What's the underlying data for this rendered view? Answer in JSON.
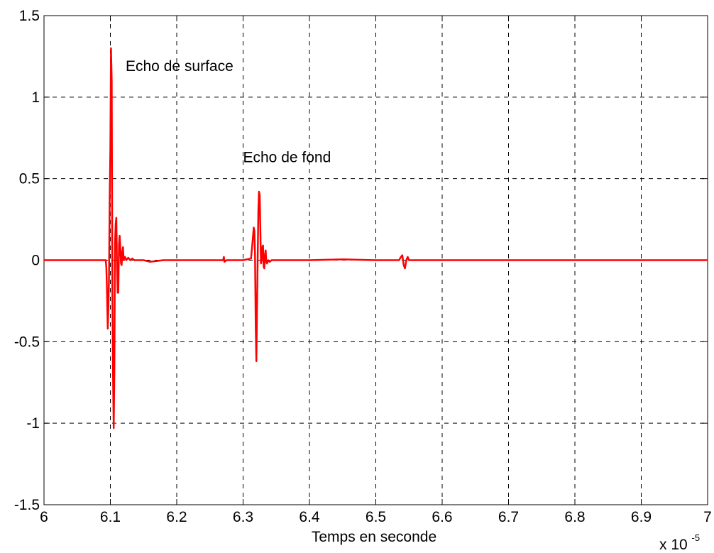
{
  "chart_data": {
    "type": "line",
    "title": "",
    "xlabel": "Temps en seconde",
    "ylabel": "",
    "x_multiplier_label": "x 10",
    "x_multiplier_exponent": "-5",
    "xlim": [
      6,
      7
    ],
    "ylim": [
      -1.5,
      1.5
    ],
    "x_ticks": [
      6,
      6.1,
      6.2,
      6.3,
      6.4,
      6.5,
      6.6,
      6.7,
      6.8,
      6.9,
      7
    ],
    "x_tick_labels": [
      "6",
      "6.1",
      "6.2",
      "6.3",
      "6.4",
      "6.5",
      "6.6",
      "6.7",
      "6.8",
      "6.9",
      "7"
    ],
    "y_ticks": [
      -1.5,
      -1,
      -0.5,
      0,
      0.5,
      1,
      1.5
    ],
    "y_tick_labels": [
      "-1.5",
      "-1",
      "-0.5",
      "0",
      "0.5",
      "1",
      "1.5"
    ],
    "grid": true,
    "series_color": "#ff0000",
    "annotations": [
      {
        "text": "Echo de surface",
        "x": 6.123,
        "y": 1.16
      },
      {
        "text": "Echo de fond",
        "x": 6.3,
        "y": 0.6
      }
    ],
    "series": [
      {
        "x": [
          6.0,
          6.093,
          6.094,
          6.095,
          6.096,
          6.097,
          6.098,
          6.099,
          6.1,
          6.101,
          6.102,
          6.103,
          6.104,
          6.105,
          6.106,
          6.107,
          6.108,
          6.109,
          6.11,
          6.111,
          6.112,
          6.113,
          6.114,
          6.115,
          6.116,
          6.117,
          6.118,
          6.119,
          6.12,
          6.122,
          6.124,
          6.127,
          6.13,
          6.133,
          6.136,
          6.14,
          6.15,
          6.16,
          6.18,
          6.2,
          6.25,
          6.27,
          6.271,
          6.272,
          6.275,
          6.3,
          6.312,
          6.314,
          6.316,
          6.317,
          6.318,
          6.319,
          6.32,
          6.321,
          6.322,
          6.323,
          6.324,
          6.325,
          6.326,
          6.327,
          6.328,
          6.329,
          6.33,
          6.331,
          6.332,
          6.333,
          6.334,
          6.335,
          6.336,
          6.338,
          6.34,
          6.343,
          6.35,
          6.4,
          6.45,
          6.5,
          6.535,
          6.538,
          6.54,
          6.542,
          6.544,
          6.546,
          6.548,
          6.55,
          6.56,
          6.6,
          6.7,
          6.8,
          6.9,
          7.0
        ],
        "y": [
          0.0,
          0.0,
          -0.05,
          -0.2,
          -0.42,
          -0.3,
          -0.1,
          0.4,
          0.68,
          1.3,
          1.1,
          -0.2,
          -0.68,
          -1.03,
          -0.69,
          0.1,
          0.22,
          0.26,
          -0.05,
          -0.2,
          -0.2,
          0.1,
          0.15,
          0.08,
          -0.02,
          -0.03,
          0.05,
          0.08,
          0.0,
          0.02,
          0.0,
          0.015,
          0.0,
          0.01,
          0.0,
          0.0,
          0.0,
          -0.01,
          0.0,
          0.0,
          0.0,
          0.0,
          0.02,
          -0.01,
          0.0,
          0.0,
          0.01,
          0.1,
          0.2,
          0.18,
          0.04,
          -0.4,
          -0.62,
          -0.3,
          0.02,
          0.3,
          0.42,
          0.4,
          0.2,
          -0.02,
          0.0,
          0.08,
          0.09,
          -0.04,
          -0.05,
          0.03,
          0.06,
          -0.01,
          -0.02,
          0.0,
          -0.01,
          0.0,
          0.0,
          0.0,
          0.005,
          0.0,
          0.0,
          0.02,
          0.03,
          -0.03,
          -0.05,
          0.0,
          0.02,
          0.0,
          0.0,
          0.0,
          0.0,
          0.0,
          0.0,
          0.0
        ]
      }
    ]
  }
}
